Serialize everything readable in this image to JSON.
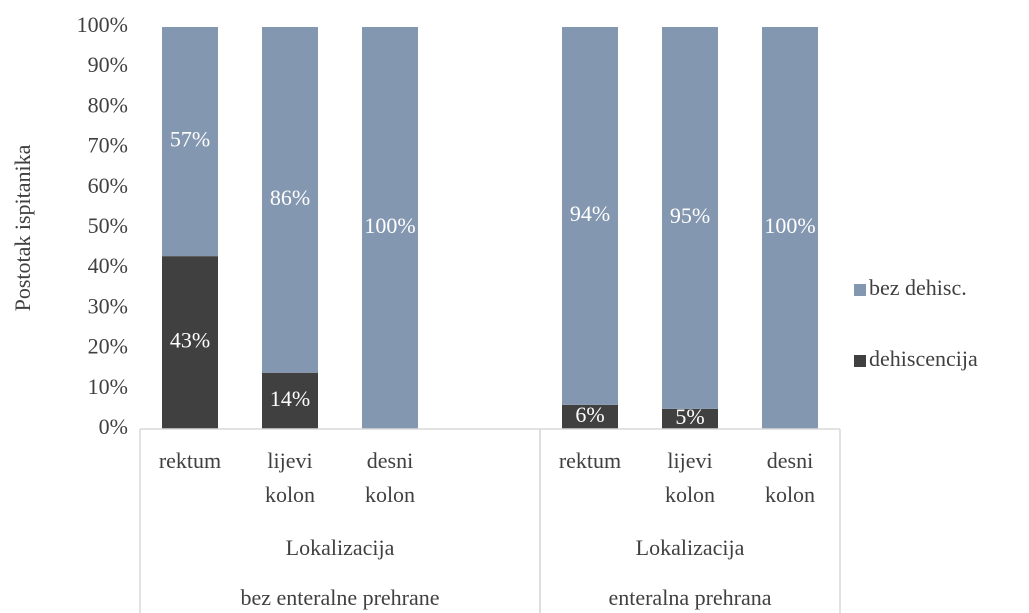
{
  "chart_data": {
    "type": "stacked_bar",
    "y_label": "Postotak ispitanika",
    "categories": [
      "rektum",
      "lijevi kolon",
      "desni kolon",
      null,
      "rektum",
      "lijevi kolon",
      "desni kolon"
    ],
    "groups": [
      {
        "label": "Lokalizacija",
        "name": "bez enteralne prehrane"
      },
      {
        "label": "Lokalizacija",
        "name": "enteralna prehrana"
      }
    ],
    "series": [
      {
        "name": "dehiscencija",
        "color": "#404040",
        "values": [
          43,
          14,
          0,
          null,
          6,
          5,
          0
        ],
        "value_labels": [
          "43%",
          "14%",
          null,
          null,
          "6%",
          "5%",
          null
        ]
      },
      {
        "name": "bez dehisc.",
        "color": "#8497b0",
        "values": [
          57,
          86,
          100,
          null,
          94,
          95,
          100
        ],
        "value_labels": [
          "57%",
          "86%",
          "100%",
          null,
          "94%",
          "95%",
          "100%"
        ]
      }
    ],
    "ylim": [
      0,
      100
    ],
    "yticks": [
      {
        "value": 0,
        "label": "0%"
      },
      {
        "value": 10,
        "label": "10%"
      },
      {
        "value": 20,
        "label": "20%"
      },
      {
        "value": 30,
        "label": "30%"
      },
      {
        "value": 40,
        "label": "40%"
      },
      {
        "value": 50,
        "label": "50%"
      },
      {
        "value": 60,
        "label": "60%"
      },
      {
        "value": 70,
        "label": "70%"
      },
      {
        "value": 80,
        "label": "80%"
      },
      {
        "value": 90,
        "label": "90%"
      },
      {
        "value": 100,
        "label": "100%"
      }
    ],
    "legend": "right"
  }
}
